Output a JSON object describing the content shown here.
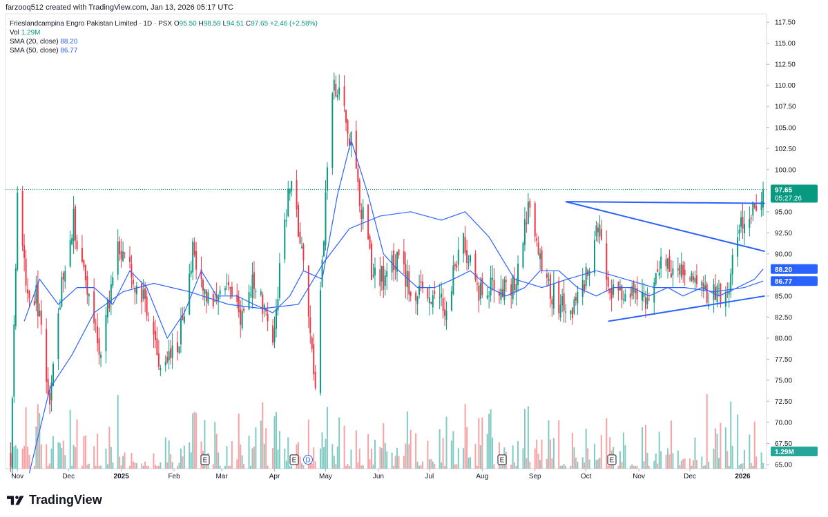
{
  "header": {
    "author_line": "farzooq512 created with TradingView.com, Jan 13, 2026 05:17 UTC"
  },
  "legend": {
    "symbol": "Frieslandcampina Engro Pakistan Limited · 1D · PSX",
    "o_label": "O",
    "o_value": "95.50",
    "h_label": "H",
    "h_value": "98.59",
    "l_label": "L",
    "l_value": "94.51",
    "c_label": "C",
    "c_value": "97.65",
    "change": "+2.46 (+2.58%)",
    "vol_label": "Vol",
    "vol_value": "1.29M",
    "sma20_label": "SMA (20, close)",
    "sma20_value": "88.20",
    "sma50_label": "SMA (50, close)",
    "sma50_value": "86.77"
  },
  "brand": {
    "name": "TradingView"
  },
  "colors": {
    "up": "#089981",
    "down": "#f23645",
    "vol_up": "#80cbc4",
    "vol_down": "#faa1a4",
    "sma": "#2962ff",
    "trend": "#2962ff"
  },
  "chart_data": {
    "type": "candlestick",
    "title": "Frieslandcampina Engro Pakistan Limited · 1D · PSX",
    "y_axis": {
      "ticks": [
        "117.50",
        "115.00",
        "112.50",
        "110.00",
        "107.50",
        "105.00",
        "102.50",
        "100.00",
        "97.65",
        "95.00",
        "92.50",
        "90.00",
        "88.20",
        "86.77",
        "85.00",
        "82.50",
        "80.00",
        "77.50",
        "75.00",
        "72.50",
        "70.00",
        "67.50",
        "1.29M",
        "65.00"
      ],
      "ylim": [
        64.5,
        118.5
      ]
    },
    "x_axis": {
      "ticks": [
        "Nov",
        "Dec",
        "2025",
        "Feb",
        "Mar",
        "Apr",
        "May",
        "Jun",
        "Jul",
        "Aug",
        "Sep",
        "Oct",
        "Nov",
        "Dec",
        "2026"
      ]
    },
    "price_labels": {
      "last_price": "97.65",
      "countdown": "05:27:26",
      "sma20": "88.20",
      "sma50": "86.77",
      "volume": "1.29M"
    },
    "event_markers": [
      "E",
      "E",
      "D",
      "E",
      "E",
      "E"
    ],
    "ohlc_anchor_path": [
      [
        "2024-10-28",
        66
      ],
      [
        "2024-11-01",
        96
      ],
      [
        "2024-11-06",
        86
      ],
      [
        "2024-11-12",
        85
      ],
      [
        "2024-11-20",
        73
      ],
      [
        "2024-11-27",
        87
      ],
      [
        "2024-12-04",
        94
      ],
      [
        "2024-12-11",
        86
      ],
      [
        "2024-12-20",
        78
      ],
      [
        "2024-12-30",
        91
      ],
      [
        "2025-01-08",
        87
      ],
      [
        "2025-01-15",
        84
      ],
      [
        "2025-01-24",
        77
      ],
      [
        "2025-02-03",
        79
      ],
      [
        "2025-02-12",
        90
      ],
      [
        "2025-02-20",
        84
      ],
      [
        "2025-03-03",
        86
      ],
      [
        "2025-03-12",
        83
      ],
      [
        "2025-03-20",
        87
      ],
      [
        "2025-03-31",
        80
      ],
      [
        "2025-04-10",
        99
      ],
      [
        "2025-04-17",
        90
      ],
      [
        "2025-04-25",
        75
      ],
      [
        "2025-05-05",
        110
      ],
      [
        "2025-05-12",
        108
      ],
      [
        "2025-05-20",
        98
      ],
      [
        "2025-05-28",
        88
      ],
      [
        "2025-06-04",
        87
      ],
      [
        "2025-06-12",
        90
      ],
      [
        "2025-06-20",
        86
      ],
      [
        "2025-07-01",
        85
      ],
      [
        "2025-07-10",
        84
      ],
      [
        "2025-07-21",
        91
      ],
      [
        "2025-07-30",
        85
      ],
      [
        "2025-08-08",
        86
      ],
      [
        "2025-08-20",
        86
      ],
      [
        "2025-08-28",
        96
      ],
      [
        "2025-09-03",
        89
      ],
      [
        "2025-09-12",
        85
      ],
      [
        "2025-09-22",
        83
      ],
      [
        "2025-10-02",
        88
      ],
      [
        "2025-10-08",
        93
      ],
      [
        "2025-10-15",
        86
      ],
      [
        "2025-10-24",
        85
      ],
      [
        "2025-11-05",
        84
      ],
      [
        "2025-11-15",
        89
      ],
      [
        "2025-11-24",
        88
      ],
      [
        "2025-12-03",
        86
      ],
      [
        "2025-12-12",
        85
      ],
      [
        "2025-12-22",
        85
      ],
      [
        "2026-01-01",
        94
      ],
      [
        "2026-01-09",
        95
      ],
      [
        "2026-01-13",
        97.65
      ]
    ],
    "sma20_path": [
      [
        "2024-11-05",
        82
      ],
      [
        "2024-11-14",
        87
      ],
      [
        "2024-11-25",
        84
      ],
      [
        "2024-12-06",
        86
      ],
      [
        "2024-12-16",
        86
      ],
      [
        "2024-12-27",
        84
      ],
      [
        "2025-01-06",
        88
      ],
      [
        "2025-01-16",
        86
      ],
      [
        "2025-01-28",
        80
      ],
      [
        "2025-02-07",
        83
      ],
      [
        "2025-02-17",
        88
      ],
      [
        "2025-02-26",
        85
      ],
      [
        "2025-03-10",
        85
      ],
      [
        "2025-03-20",
        84
      ],
      [
        "2025-03-31",
        83
      ],
      [
        "2025-04-10",
        85
      ],
      [
        "2025-04-18",
        88
      ],
      [
        "2025-04-29",
        87
      ],
      [
        "2025-05-08",
        97
      ],
      [
        "2025-05-16",
        103.5
      ],
      [
        "2025-05-26",
        97
      ],
      [
        "2025-06-04",
        90
      ],
      [
        "2025-06-13",
        88
      ],
      [
        "2025-06-24",
        86
      ],
      [
        "2025-07-04",
        86
      ],
      [
        "2025-07-15",
        87
      ],
      [
        "2025-07-25",
        88
      ],
      [
        "2025-08-05",
        86
      ],
      [
        "2025-08-15",
        85
      ],
      [
        "2025-08-26",
        86
      ],
      [
        "2025-09-04",
        88
      ],
      [
        "2025-09-15",
        88
      ],
      [
        "2025-09-26",
        86
      ],
      [
        "2025-10-07",
        85
      ],
      [
        "2025-10-17",
        86
      ],
      [
        "2025-10-28",
        86
      ],
      [
        "2025-11-07",
        85
      ],
      [
        "2025-11-18",
        86
      ],
      [
        "2025-11-27",
        85
      ],
      [
        "2025-12-08",
        86
      ],
      [
        "2025-12-18",
        85
      ],
      [
        "2025-12-29",
        86
      ],
      [
        "2026-01-08",
        87
      ],
      [
        "2026-01-13",
        88.2
      ]
    ],
    "sma50_path": [
      [
        "2024-11-08",
        64
      ],
      [
        "2024-11-20",
        74
      ],
      [
        "2024-12-03",
        78
      ],
      [
        "2024-12-16",
        83
      ],
      [
        "2025-01-02",
        85.5
      ],
      [
        "2025-01-20",
        86.5
      ],
      [
        "2025-02-10",
        85.5
      ],
      [
        "2025-03-05",
        84
      ],
      [
        "2025-03-25",
        83.5
      ],
      [
        "2025-04-15",
        84
      ],
      [
        "2025-04-30",
        89
      ],
      [
        "2025-05-15",
        93
      ],
      [
        "2025-06-02",
        94.5
      ],
      [
        "2025-06-20",
        95
      ],
      [
        "2025-07-08",
        94
      ],
      [
        "2025-07-22",
        95
      ],
      [
        "2025-08-05",
        92
      ],
      [
        "2025-08-20",
        87
      ],
      [
        "2025-09-05",
        86
      ],
      [
        "2025-09-20",
        87
      ],
      [
        "2025-10-07",
        88
      ],
      [
        "2025-10-24",
        87
      ],
      [
        "2025-11-10",
        86
      ],
      [
        "2025-11-28",
        86
      ],
      [
        "2025-12-15",
        85.5
      ],
      [
        "2026-01-02",
        86
      ],
      [
        "2026-01-13",
        86.77
      ]
    ],
    "trendlines": [
      {
        "name": "resistance",
        "from": [
          "2025-09-19",
          96.2
        ],
        "to": [
          "2026-01-14",
          96.0
        ]
      },
      {
        "name": "upper_triangle",
        "from": [
          "2025-09-19",
          96.2
        ],
        "to": [
          "2026-01-14",
          90.3
        ]
      },
      {
        "name": "lower_triangle",
        "from": [
          "2025-10-14",
          82.0
        ],
        "to": [
          "2026-01-14",
          85.0
        ]
      }
    ]
  }
}
